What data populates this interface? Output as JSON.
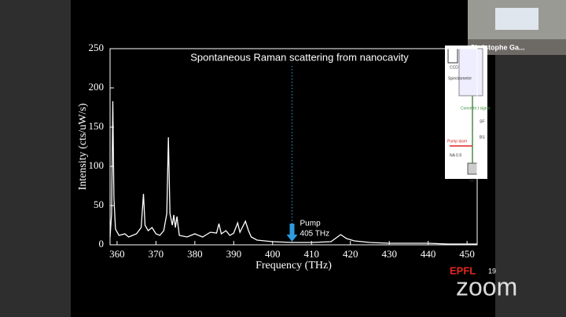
{
  "chart_data": {
    "type": "line",
    "title": "Spontaneous Raman scattering from nanocavity",
    "x_label": "Frequency (THz)",
    "y_label": "Intensity (cts/uW/s)",
    "x": [
      358.2,
      358.6,
      358.9,
      359.2,
      359.6,
      360.5,
      362,
      363,
      365,
      366.2,
      366.8,
      367.2,
      368,
      369,
      370,
      371,
      372,
      372.8,
      373.2,
      373.6,
      374.2,
      374.6,
      375,
      375.4,
      376,
      378,
      380,
      382,
      384,
      385.6,
      386.2,
      386.8,
      388,
      389,
      390,
      391,
      391.6,
      393,
      393.8,
      394.5,
      396,
      400,
      405,
      410,
      415,
      417.5,
      419,
      421,
      425,
      430,
      440,
      445,
      452.6
    ],
    "series": [
      {
        "color": "#ffffff",
        "values": [
          10,
          40,
          183,
          60,
          20,
          12,
          14,
          10,
          14,
          22,
          65,
          25,
          18,
          22,
          14,
          12,
          18,
          40,
          137,
          40,
          25,
          38,
          22,
          36,
          12,
          10,
          14,
          10,
          16,
          15,
          27,
          14,
          18,
          12,
          15,
          28,
          16,
          30,
          18,
          10,
          6,
          4,
          3,
          3,
          4,
          13,
          8,
          5,
          3,
          2,
          2,
          1,
          1
        ]
      }
    ],
    "xlim": [
      358.2,
      452.6
    ],
    "ylim": [
      0,
      250
    ],
    "xticks": [
      360,
      370,
      380,
      390,
      400,
      410,
      420,
      430,
      440,
      450
    ],
    "yticks": [
      0,
      50,
      100,
      150,
      200,
      250
    ],
    "annotations": [
      {
        "text": [
          "Pump",
          "405 THz"
        ],
        "x": 405,
        "color": "#2e9be0"
      }
    ]
  },
  "ui": {
    "participant_name": "Christophe Ga...",
    "slide_number": "19",
    "logo": "EPFL",
    "app_logo": "zoom",
    "diagram_labels": [
      "CCD",
      "Spectrometer",
      "Converted signal",
      "SF",
      "BS",
      "Pump laser",
      "NA 0.9",
      "obj"
    ]
  }
}
